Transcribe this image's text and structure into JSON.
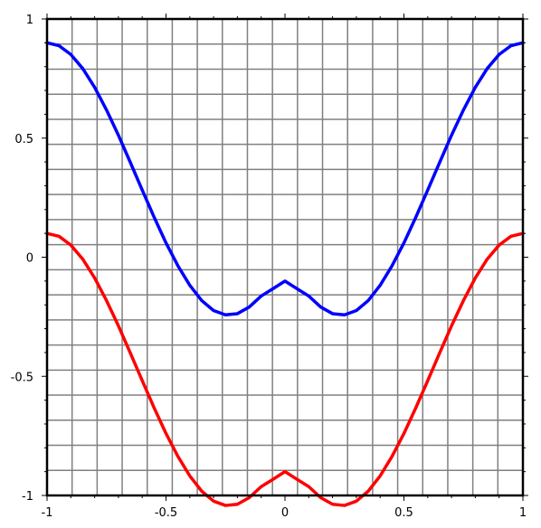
{
  "chart_data": {
    "type": "line",
    "title": "",
    "xlabel": "",
    "ylabel": "",
    "xlim": [
      -1,
      1
    ],
    "ylim": [
      -1,
      1
    ],
    "grid": true,
    "grid_color": "#808080",
    "frame_color": "#000000",
    "x_ticks": [
      {
        "value": -1,
        "label": "-1"
      },
      {
        "value": -0.5,
        "label": "-0.5"
      },
      {
        "value": 0,
        "label": "0"
      },
      {
        "value": 0.5,
        "label": "0.5"
      },
      {
        "value": 1,
        "label": "1"
      }
    ],
    "y_ticks": [
      {
        "value": 1,
        "label": "1"
      },
      {
        "value": 0.5,
        "label": "0.5"
      },
      {
        "value": 0,
        "label": "0"
      },
      {
        "value": -0.5,
        "label": "-0.5"
      },
      {
        "value": -1,
        "label": "-1"
      }
    ],
    "series": [
      {
        "color": "#0000ff",
        "x": [
          -1,
          -0.95,
          -0.9,
          -0.85,
          -0.8,
          -0.75,
          -0.7,
          -0.65,
          -0.6,
          -0.55,
          -0.5,
          -0.45,
          -0.4,
          -0.35,
          -0.3,
          -0.25,
          -0.2,
          -0.15,
          -0.1,
          -0.05,
          0,
          0.05,
          0.1,
          0.15,
          0.2,
          0.25,
          0.3,
          0.35,
          0.4,
          0.45,
          0.5,
          0.55,
          0.6,
          0.65,
          0.7,
          0.75,
          0.8,
          0.85,
          0.9,
          0.95,
          1
        ],
        "y": [
          0.9,
          0.888,
          0.851,
          0.792,
          0.713,
          0.618,
          0.512,
          0.398,
          0.282,
          0.168,
          0.06,
          -0.036,
          -0.118,
          -0.182,
          -0.224,
          -0.242,
          -0.237,
          -0.209,
          -0.163,
          -0.132,
          -0.1,
          -0.132,
          -0.163,
          -0.209,
          -0.237,
          -0.242,
          -0.224,
          -0.182,
          -0.118,
          -0.036,
          0.06,
          0.168,
          0.282,
          0.398,
          0.512,
          0.618,
          0.713,
          0.792,
          0.851,
          0.888,
          0.9
        ]
      },
      {
        "color": "#ff0000",
        "x": [
          -1,
          -0.95,
          -0.9,
          -0.85,
          -0.8,
          -0.75,
          -0.7,
          -0.65,
          -0.6,
          -0.55,
          -0.5,
          -0.45,
          -0.4,
          -0.35,
          -0.3,
          -0.25,
          -0.2,
          -0.15,
          -0.1,
          -0.05,
          0,
          0.05,
          0.1,
          0.15,
          0.2,
          0.25,
          0.3,
          0.35,
          0.4,
          0.45,
          0.5,
          0.55,
          0.6,
          0.65,
          0.7,
          0.75,
          0.8,
          0.85,
          0.9,
          0.95,
          1
        ],
        "y": [
          0.1,
          0.088,
          0.051,
          -0.008,
          -0.087,
          -0.182,
          -0.288,
          -0.402,
          -0.518,
          -0.632,
          -0.74,
          -0.836,
          -0.918,
          -0.982,
          -1.024,
          -1.042,
          -1.037,
          -1.009,
          -0.963,
          -0.932,
          -0.9,
          -0.932,
          -0.963,
          -1.009,
          -1.037,
          -1.042,
          -1.024,
          -0.982,
          -0.918,
          -0.836,
          -0.74,
          -0.632,
          -0.518,
          -0.402,
          -0.288,
          -0.182,
          -0.087,
          -0.008,
          0.051,
          0.088,
          0.1
        ]
      }
    ]
  }
}
